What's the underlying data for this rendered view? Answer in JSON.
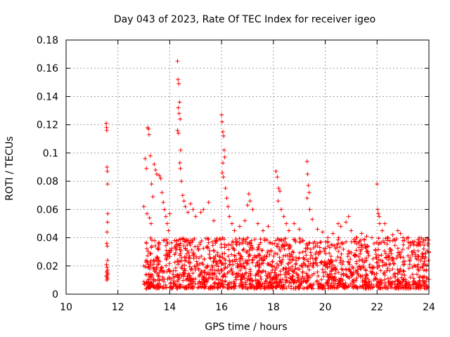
{
  "chart_data": {
    "type": "scatter",
    "title": "Day 043 of 2023, Rate Of TEC Index for receiver igeo",
    "xlabel": "GPS time / hours",
    "ylabel": "ROTI / TECUs",
    "xlim": [
      10,
      24
    ],
    "ylim": [
      0,
      0.18
    ],
    "xticks": [
      10,
      12,
      14,
      16,
      18,
      20,
      22,
      24
    ],
    "yticks": [
      0,
      0.02,
      0.04,
      0.06,
      0.08,
      0.1,
      0.12,
      0.14,
      0.16,
      0.18
    ],
    "xtick_labels": [
      "10",
      "12",
      "14",
      "16",
      "18",
      "20",
      "22",
      "24"
    ],
    "ytick_labels": [
      "0",
      "0.02",
      "0.04",
      "0.06",
      "0.08",
      "0.1",
      "0.12",
      "0.14",
      "0.16",
      "0.18"
    ],
    "grid": true,
    "marker": "+",
    "color": "#ff0000",
    "series": [
      {
        "name": "ROTI",
        "points": [
          [
            11.55,
            0.121
          ],
          [
            11.56,
            0.118
          ],
          [
            11.57,
            0.116
          ],
          [
            11.58,
            0.09
          ],
          [
            11.59,
            0.087
          ],
          [
            11.6,
            0.078
          ],
          [
            11.61,
            0.057
          ],
          [
            11.6,
            0.051
          ],
          [
            11.58,
            0.044
          ],
          [
            11.57,
            0.036
          ],
          [
            11.59,
            0.034
          ],
          [
            11.6,
            0.024
          ],
          [
            11.56,
            0.021
          ],
          [
            11.58,
            0.019
          ],
          [
            11.6,
            0.017
          ],
          [
            11.57,
            0.016
          ],
          [
            11.59,
            0.015
          ],
          [
            11.61,
            0.014
          ],
          [
            11.55,
            0.013
          ],
          [
            11.58,
            0.012
          ],
          [
            11.6,
            0.011
          ],
          [
            11.57,
            0.01
          ],
          [
            13.0,
            0.062
          ],
          [
            13.05,
            0.096
          ],
          [
            13.1,
            0.089
          ],
          [
            13.15,
            0.118
          ],
          [
            13.18,
            0.117
          ],
          [
            13.2,
            0.113
          ],
          [
            13.25,
            0.098
          ],
          [
            13.3,
            0.078
          ],
          [
            13.35,
            0.069
          ],
          [
            13.12,
            0.057
          ],
          [
            13.22,
            0.054
          ],
          [
            13.28,
            0.05
          ],
          [
            13.4,
            0.092
          ],
          [
            13.45,
            0.088
          ],
          [
            13.5,
            0.085
          ],
          [
            13.6,
            0.084
          ],
          [
            13.65,
            0.082
          ],
          [
            13.7,
            0.072
          ],
          [
            13.75,
            0.065
          ],
          [
            13.8,
            0.06
          ],
          [
            13.85,
            0.055
          ],
          [
            13.9,
            0.05
          ],
          [
            13.95,
            0.045
          ],
          [
            14.0,
            0.057
          ],
          [
            14.3,
            0.165
          ],
          [
            14.32,
            0.152
          ],
          [
            14.35,
            0.149
          ],
          [
            14.38,
            0.136
          ],
          [
            14.33,
            0.132
          ],
          [
            14.36,
            0.128
          ],
          [
            14.4,
            0.124
          ],
          [
            14.3,
            0.116
          ],
          [
            14.34,
            0.114
          ],
          [
            14.42,
            0.102
          ],
          [
            14.39,
            0.093
          ],
          [
            14.41,
            0.089
          ],
          [
            14.45,
            0.08
          ],
          [
            14.5,
            0.07
          ],
          [
            14.55,
            0.066
          ],
          [
            14.6,
            0.062
          ],
          [
            14.7,
            0.058
          ],
          [
            14.8,
            0.064
          ],
          [
            14.9,
            0.06
          ],
          [
            15.0,
            0.055
          ],
          [
            15.2,
            0.058
          ],
          [
            15.3,
            0.06
          ],
          [
            15.5,
            0.065
          ],
          [
            15.7,
            0.052
          ],
          [
            16.0,
            0.127
          ],
          [
            16.02,
            0.122
          ],
          [
            16.05,
            0.115
          ],
          [
            16.08,
            0.112
          ],
          [
            16.1,
            0.102
          ],
          [
            16.12,
            0.097
          ],
          [
            16.05,
            0.093
          ],
          [
            16.03,
            0.086
          ],
          [
            16.07,
            0.083
          ],
          [
            16.15,
            0.075
          ],
          [
            16.2,
            0.068
          ],
          [
            16.25,
            0.062
          ],
          [
            16.3,
            0.055
          ],
          [
            16.4,
            0.05
          ],
          [
            16.5,
            0.045
          ],
          [
            16.7,
            0.048
          ],
          [
            16.9,
            0.052
          ],
          [
            17.0,
            0.063
          ],
          [
            17.05,
            0.071
          ],
          [
            17.1,
            0.066
          ],
          [
            17.2,
            0.06
          ],
          [
            17.4,
            0.05
          ],
          [
            17.6,
            0.045
          ],
          [
            17.8,
            0.048
          ],
          [
            18.1,
            0.087
          ],
          [
            18.15,
            0.083
          ],
          [
            18.2,
            0.075
          ],
          [
            18.25,
            0.073
          ],
          [
            18.18,
            0.066
          ],
          [
            18.3,
            0.06
          ],
          [
            18.4,
            0.055
          ],
          [
            18.5,
            0.05
          ],
          [
            18.6,
            0.045
          ],
          [
            18.8,
            0.05
          ],
          [
            19.0,
            0.046
          ],
          [
            19.3,
            0.094
          ],
          [
            19.32,
            0.085
          ],
          [
            19.35,
            0.077
          ],
          [
            19.38,
            0.072
          ],
          [
            19.3,
            0.068
          ],
          [
            19.4,
            0.06
          ],
          [
            19.5,
            0.053
          ],
          [
            19.7,
            0.046
          ],
          [
            19.9,
            0.044
          ],
          [
            20.1,
            0.04
          ],
          [
            20.3,
            0.043
          ],
          [
            20.5,
            0.05
          ],
          [
            20.6,
            0.048
          ],
          [
            20.8,
            0.051
          ],
          [
            20.9,
            0.055
          ],
          [
            21.0,
            0.045
          ],
          [
            21.2,
            0.04
          ],
          [
            21.4,
            0.043
          ],
          [
            21.6,
            0.041
          ],
          [
            21.8,
            0.04
          ],
          [
            22.0,
            0.078
          ],
          [
            22.02,
            0.06
          ],
          [
            22.05,
            0.057
          ],
          [
            22.08,
            0.055
          ],
          [
            22.1,
            0.05
          ],
          [
            22.2,
            0.045
          ],
          [
            22.3,
            0.05
          ],
          [
            22.4,
            0.04
          ],
          [
            22.6,
            0.042
          ],
          [
            22.7,
            0.038
          ],
          [
            22.8,
            0.045
          ],
          [
            22.9,
            0.043
          ],
          [
            23.0,
            0.04
          ],
          [
            23.2,
            0.04
          ],
          [
            23.4,
            0.037
          ],
          [
            23.6,
            0.035
          ],
          [
            23.8,
            0.032
          ],
          [
            24.0,
            0.03
          ]
        ],
        "band": [
          {
            "x_start": 13.0,
            "x_end": 24.0,
            "y_min": 0.004,
            "y_max": 0.04,
            "count": 1800,
            "note": "dense cluster of + markers across 13–24 h"
          }
        ]
      }
    ]
  }
}
